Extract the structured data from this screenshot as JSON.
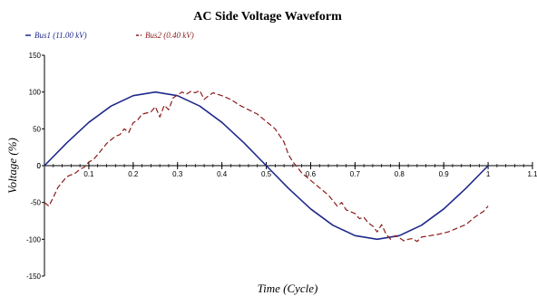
{
  "chart_data": {
    "type": "line",
    "title": "AC Side Voltage Waveform",
    "xlabel": "Time (Cycle)",
    "ylabel": "Voltage (%)",
    "xlim": [
      0,
      1.1
    ],
    "ylim": [
      -150,
      150
    ],
    "xticks": [
      0.1,
      0.2,
      0.3,
      0.4,
      0.5,
      0.6,
      0.7,
      0.8,
      0.9,
      1,
      1.1
    ],
    "yticks": [
      150,
      100,
      50,
      0,
      -50,
      -100,
      -150
    ],
    "legend_position": "top-left",
    "grid": false,
    "series": [
      {
        "name": "Bus1 (11.00 kV)",
        "color": "#1f2a8a",
        "style": "solid",
        "x": [
          0,
          0.05,
          0.1,
          0.15,
          0.2,
          0.25,
          0.3,
          0.35,
          0.4,
          0.45,
          0.5,
          0.55,
          0.6,
          0.65,
          0.7,
          0.75,
          0.8,
          0.85,
          0.9,
          0.95,
          1.0
        ],
        "values": [
          0,
          30.9,
          58.8,
          80.9,
          95.1,
          100,
          95.1,
          80.9,
          58.8,
          30.9,
          0,
          -30.9,
          -58.8,
          -80.9,
          -95.1,
          -100,
          -95.1,
          -80.9,
          -58.8,
          -30.9,
          0
        ]
      },
      {
        "name": "Bus2 (0.40 kV)",
        "color": "#8b1a1a",
        "style": "dashed",
        "x": [
          0,
          0.01,
          0.02,
          0.03,
          0.05,
          0.07,
          0.08,
          0.09,
          0.1,
          0.11,
          0.12,
          0.14,
          0.15,
          0.16,
          0.17,
          0.18,
          0.19,
          0.2,
          0.21,
          0.22,
          0.24,
          0.25,
          0.26,
          0.27,
          0.28,
          0.29,
          0.3,
          0.31,
          0.32,
          0.33,
          0.34,
          0.35,
          0.36,
          0.37,
          0.38,
          0.4,
          0.42,
          0.44,
          0.46,
          0.48,
          0.5,
          0.52,
          0.54,
          0.55,
          0.56,
          0.57,
          0.58,
          0.6,
          0.62,
          0.64,
          0.66,
          0.67,
          0.68,
          0.7,
          0.71,
          0.72,
          0.73,
          0.74,
          0.75,
          0.76,
          0.77,
          0.78,
          0.79,
          0.8,
          0.81,
          0.82,
          0.83,
          0.84,
          0.85,
          0.87,
          0.89,
          0.91,
          0.93,
          0.95,
          0.97,
          0.99,
          1.0
        ],
        "values": [
          -50,
          -55,
          -43,
          -30,
          -15,
          -10,
          -5,
          -2,
          5,
          8,
          15,
          30,
          35,
          40,
          42,
          50,
          45,
          58,
          62,
          70,
          73,
          80,
          66,
          82,
          76,
          92,
          96,
          100,
          97,
          101,
          99,
          102,
          90,
          95,
          99,
          95,
          90,
          82,
          76,
          70,
          60,
          50,
          32,
          15,
          5,
          -2,
          -10,
          -20,
          -30,
          -40,
          -55,
          -50,
          -60,
          -65,
          -72,
          -70,
          -78,
          -82,
          -90,
          -80,
          -93,
          -100,
          -95,
          -98,
          -102,
          -100,
          -99,
          -103,
          -97,
          -95,
          -93,
          -90,
          -85,
          -80,
          -70,
          -62,
          -55
        ]
      }
    ]
  }
}
